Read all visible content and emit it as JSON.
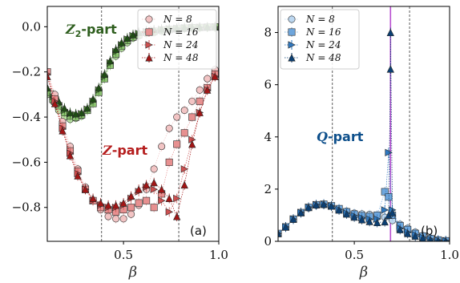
{
  "chart_data": [
    {
      "type": "scatter",
      "panel_label": "(a)",
      "xlabel": "β",
      "ylabel": "",
      "xlim": [
        0.1,
        1.0
      ],
      "ylim": [
        -0.95,
        0.09
      ],
      "xticks": [
        0.5,
        1.0
      ],
      "xtick_labels": [
        "0.5",
        "1.0"
      ],
      "yticks": [
        0.0,
        -0.2,
        -0.4,
        -0.6,
        -0.8
      ],
      "ytick_labels": [
        "0.0",
        "−0.2",
        "−0.4",
        "−0.6",
        "−0.8"
      ],
      "vlines": [
        0.385,
        0.79
      ],
      "legend": {
        "position": "top-right",
        "entries": [
          "N = 8",
          "N = 16",
          "N = 24",
          "N = 48"
        ],
        "markers": [
          "circle",
          "square",
          "triangle-right",
          "triangle-up"
        ]
      },
      "annotations": [
        {
          "main": "Z",
          "sub": "2",
          "suffix": "-part",
          "color": "#2e5e1e"
        },
        {
          "main": "Z",
          "sub": "",
          "suffix": "-part",
          "color": "#b51d1d"
        }
      ],
      "series": [
        {
          "group": "Z2",
          "name": "N = 8",
          "marker": "circle",
          "color": "#b9e3a3",
          "x": [
            0.1,
            0.13,
            0.16,
            0.19,
            0.22,
            0.25,
            0.28,
            0.31,
            0.34,
            0.37,
            0.4,
            0.43,
            0.46,
            0.49,
            0.52,
            0.55,
            0.58,
            0.62,
            0.66,
            0.7,
            0.74,
            0.78,
            0.82,
            0.86,
            0.9,
            0.94,
            0.98
          ],
          "y": [
            -0.3,
            -0.33,
            -0.37,
            -0.4,
            -0.41,
            -0.405,
            -0.395,
            -0.37,
            -0.33,
            -0.28,
            -0.22,
            -0.17,
            -0.13,
            -0.095,
            -0.07,
            -0.05,
            -0.04,
            -0.03,
            -0.025,
            -0.02,
            -0.015,
            -0.01,
            -0.008,
            -0.005,
            -0.003,
            -0.002,
            -0.001
          ]
        },
        {
          "group": "Z2",
          "name": "N = 16",
          "marker": "square",
          "color": "#8bc171",
          "x": [
            0.1,
            0.13,
            0.16,
            0.19,
            0.22,
            0.25,
            0.28,
            0.31,
            0.34,
            0.37,
            0.4,
            0.43,
            0.46,
            0.49,
            0.52,
            0.55,
            0.58,
            0.62,
            0.66,
            0.7,
            0.74,
            0.78,
            0.82,
            0.86,
            0.9,
            0.94,
            0.98
          ],
          "y": [
            -0.29,
            -0.32,
            -0.35,
            -0.38,
            -0.395,
            -0.4,
            -0.39,
            -0.37,
            -0.34,
            -0.29,
            -0.23,
            -0.17,
            -0.12,
            -0.085,
            -0.06,
            -0.045,
            -0.035,
            -0.025,
            -0.02,
            -0.015,
            -0.012,
            -0.009,
            -0.006,
            -0.004,
            -0.003,
            -0.002,
            -0.001
          ]
        },
        {
          "group": "Z2",
          "name": "N = 24",
          "marker": "triangle-right",
          "color": "#4f8a36",
          "x": [
            0.1,
            0.13,
            0.16,
            0.19,
            0.22,
            0.25,
            0.28,
            0.31,
            0.34,
            0.37,
            0.4,
            0.43,
            0.46,
            0.49,
            0.52,
            0.55,
            0.58,
            0.62,
            0.66,
            0.7,
            0.74,
            0.78,
            0.82,
            0.86,
            0.9,
            0.94,
            0.98
          ],
          "y": [
            -0.28,
            -0.31,
            -0.345,
            -0.37,
            -0.385,
            -0.39,
            -0.385,
            -0.365,
            -0.33,
            -0.28,
            -0.22,
            -0.16,
            -0.11,
            -0.08,
            -0.055,
            -0.04,
            -0.03,
            -0.022,
            -0.016,
            -0.012,
            -0.009,
            -0.007,
            -0.005,
            -0.004,
            -0.003,
            -0.002,
            -0.001
          ]
        },
        {
          "group": "Z2",
          "name": "N = 48",
          "marker": "triangle-up",
          "color": "#1f4d14",
          "x": [
            0.1,
            0.13,
            0.16,
            0.19,
            0.22,
            0.25,
            0.28,
            0.31,
            0.34,
            0.37,
            0.4,
            0.43,
            0.46,
            0.49,
            0.52,
            0.55,
            0.58,
            0.62,
            0.66,
            0.7,
            0.74,
            0.78,
            0.82,
            0.86,
            0.9,
            0.94,
            0.98
          ],
          "y": [
            -0.27,
            -0.3,
            -0.33,
            -0.36,
            -0.38,
            -0.385,
            -0.38,
            -0.36,
            -0.32,
            -0.27,
            -0.21,
            -0.15,
            -0.1,
            -0.07,
            -0.05,
            -0.035,
            -0.025,
            -0.018,
            -0.013,
            -0.01,
            -0.008,
            -0.006,
            -0.004,
            -0.003,
            -0.002,
            -0.001,
            0.0
          ]
        },
        {
          "group": "Z",
          "name": "N = 8",
          "marker": "circle",
          "color": "#f2c4c4",
          "x": [
            0.1,
            0.14,
            0.18,
            0.22,
            0.26,
            0.3,
            0.34,
            0.38,
            0.42,
            0.46,
            0.5,
            0.54,
            0.58,
            0.62,
            0.66,
            0.7,
            0.74,
            0.78,
            0.82,
            0.86,
            0.9,
            0.94,
            0.98
          ],
          "y": [
            -0.2,
            -0.3,
            -0.42,
            -0.53,
            -0.63,
            -0.71,
            -0.77,
            -0.81,
            -0.84,
            -0.85,
            -0.85,
            -0.83,
            -0.79,
            -0.72,
            -0.63,
            -0.53,
            -0.45,
            -0.4,
            -0.37,
            -0.33,
            -0.28,
            -0.23,
            -0.19
          ]
        },
        {
          "group": "Z",
          "name": "N = 16",
          "marker": "square",
          "color": "#e79090",
          "x": [
            0.1,
            0.14,
            0.18,
            0.22,
            0.26,
            0.3,
            0.34,
            0.38,
            0.42,
            0.46,
            0.5,
            0.54,
            0.58,
            0.62,
            0.66,
            0.7,
            0.74,
            0.78,
            0.82,
            0.86,
            0.9,
            0.94,
            0.98
          ],
          "y": [
            -0.2,
            -0.32,
            -0.44,
            -0.55,
            -0.64,
            -0.72,
            -0.77,
            -0.8,
            -0.81,
            -0.82,
            -0.81,
            -0.8,
            -0.78,
            -0.77,
            -0.8,
            -0.74,
            -0.6,
            -0.52,
            -0.47,
            -0.4,
            -0.33,
            -0.27,
            -0.21
          ]
        },
        {
          "group": "Z",
          "name": "N = 24",
          "marker": "triangle-right",
          "color": "#cd5050",
          "x": [
            0.1,
            0.14,
            0.18,
            0.22,
            0.26,
            0.3,
            0.34,
            0.38,
            0.42,
            0.46,
            0.5,
            0.54,
            0.58,
            0.62,
            0.66,
            0.7,
            0.74,
            0.78,
            0.82,
            0.86,
            0.9,
            0.94,
            0.98
          ],
          "y": [
            -0.21,
            -0.33,
            -0.45,
            -0.56,
            -0.65,
            -0.72,
            -0.77,
            -0.79,
            -0.8,
            -0.8,
            -0.79,
            -0.76,
            -0.73,
            -0.71,
            -0.72,
            -0.77,
            -0.82,
            -0.76,
            -0.63,
            -0.5,
            -0.38,
            -0.28,
            -0.22
          ]
        },
        {
          "group": "Z",
          "name": "N = 48",
          "marker": "triangle-up",
          "color": "#a31515",
          "x": [
            0.1,
            0.14,
            0.18,
            0.22,
            0.26,
            0.3,
            0.34,
            0.38,
            0.42,
            0.46,
            0.5,
            0.54,
            0.58,
            0.62,
            0.66,
            0.7,
            0.74,
            0.78,
            0.82,
            0.86,
            0.9,
            0.94,
            0.98
          ],
          "y": [
            -0.22,
            -0.34,
            -0.46,
            -0.57,
            -0.66,
            -0.72,
            -0.76,
            -0.78,
            -0.79,
            -0.79,
            -0.78,
            -0.75,
            -0.72,
            -0.7,
            -0.69,
            -0.72,
            -0.76,
            -0.84,
            -0.7,
            -0.52,
            -0.38,
            -0.28,
            -0.22
          ]
        }
      ]
    },
    {
      "type": "scatter",
      "panel_label": "(b)",
      "xlabel": "β",
      "ylabel": "",
      "xlim": [
        0.1,
        1.0
      ],
      "ylim": [
        0.0,
        9.0
      ],
      "xticks": [
        0.5,
        1.0
      ],
      "xtick_labels": [
        "0.5",
        "1.0"
      ],
      "yticks": [
        0,
        2,
        4,
        6,
        8
      ],
      "ytick_labels": [
        "0",
        "2",
        "4",
        "6",
        "8"
      ],
      "vlines": [
        0.385,
        0.79
      ],
      "critical_line": {
        "x": 0.69,
        "color": "#b84fd0"
      },
      "legend": {
        "position": "top-left",
        "entries": [
          "N = 8",
          "N = 16",
          "N = 24",
          "N = 48"
        ],
        "markers": [
          "circle",
          "square",
          "triangle-right",
          "triangle-up"
        ]
      },
      "annotations": [
        {
          "main": "Q",
          "sub": "",
          "suffix": "-part",
          "color": "#0d4f8b"
        }
      ],
      "series": [
        {
          "name": "N = 8",
          "marker": "circle",
          "color": "#bcd7f0",
          "x": [
            0.1,
            0.14,
            0.18,
            0.22,
            0.26,
            0.3,
            0.34,
            0.38,
            0.42,
            0.46,
            0.5,
            0.54,
            0.58,
            0.62,
            0.66,
            0.7,
            0.74,
            0.78,
            0.82,
            0.86,
            0.9,
            0.94,
            0.98
          ],
          "y": [
            0.3,
            0.55,
            0.85,
            1.1,
            1.28,
            1.38,
            1.4,
            1.35,
            1.25,
            1.15,
            1.08,
            1.05,
            1.03,
            1.0,
            0.92,
            0.8,
            0.65,
            0.5,
            0.35,
            0.22,
            0.12,
            0.05,
            0.02
          ]
        },
        {
          "name": "N = 16",
          "marker": "square",
          "color": "#6ea6dc",
          "x": [
            0.1,
            0.14,
            0.18,
            0.22,
            0.26,
            0.3,
            0.34,
            0.38,
            0.42,
            0.46,
            0.5,
            0.54,
            0.58,
            0.62,
            0.66,
            0.68,
            0.7,
            0.74,
            0.78,
            0.82,
            0.86,
            0.9,
            0.94,
            0.98
          ],
          "y": [
            0.3,
            0.55,
            0.85,
            1.1,
            1.3,
            1.4,
            1.42,
            1.36,
            1.25,
            1.13,
            1.04,
            0.98,
            0.95,
            1.0,
            1.9,
            1.7,
            1.0,
            0.6,
            0.45,
            0.3,
            0.2,
            0.1,
            0.05,
            0.02
          ]
        },
        {
          "name": "N = 24",
          "marker": "triangle-right",
          "color": "#2e78c0",
          "x": [
            0.1,
            0.14,
            0.18,
            0.22,
            0.26,
            0.3,
            0.34,
            0.38,
            0.42,
            0.46,
            0.5,
            0.54,
            0.58,
            0.62,
            0.66,
            0.68,
            0.7,
            0.74,
            0.78,
            0.82,
            0.86,
            0.9,
            0.94,
            0.98
          ],
          "y": [
            0.3,
            0.55,
            0.85,
            1.1,
            1.3,
            1.4,
            1.42,
            1.35,
            1.22,
            1.08,
            0.98,
            0.9,
            0.85,
            0.85,
            1.2,
            3.4,
            1.2,
            0.5,
            0.35,
            0.25,
            0.15,
            0.08,
            0.04,
            0.02
          ]
        },
        {
          "name": "N = 48",
          "marker": "triangle-up",
          "color": "#0b3f73",
          "x": [
            0.1,
            0.14,
            0.18,
            0.22,
            0.26,
            0.3,
            0.34,
            0.38,
            0.42,
            0.46,
            0.5,
            0.54,
            0.58,
            0.62,
            0.66,
            0.68,
            0.69,
            0.69,
            0.7,
            0.74,
            0.78,
            0.82,
            0.86,
            0.9,
            0.94,
            0.98
          ],
          "y": [
            0.3,
            0.55,
            0.85,
            1.1,
            1.3,
            1.4,
            1.42,
            1.35,
            1.2,
            1.05,
            0.93,
            0.83,
            0.76,
            0.72,
            0.75,
            1.0,
            6.6,
            8.0,
            1.1,
            0.45,
            0.3,
            0.2,
            0.12,
            0.06,
            0.03,
            0.01
          ]
        }
      ]
    }
  ]
}
